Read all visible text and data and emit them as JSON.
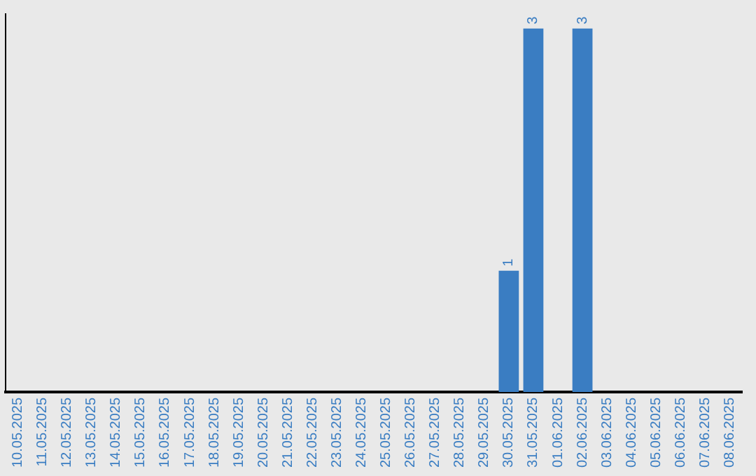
{
  "chart_data": {
    "type": "bar",
    "categories": [
      "10.05.2025",
      "11.05.2025",
      "12.05.2025",
      "13.05.2025",
      "14.05.2025",
      "15.05.2025",
      "16.05.2025",
      "17.05.2025",
      "18.05.2025",
      "19.05.2025",
      "20.05.2025",
      "21.05.2025",
      "22.05.2025",
      "23.05.2025",
      "24.05.2025",
      "25.05.2025",
      "26.05.2025",
      "27.05.2025",
      "28.05.2025",
      "29.05.2025",
      "30.05.2025",
      "31.05.2025",
      "01.06.2025",
      "02.06.2025",
      "03.06.2025",
      "04.06.2025",
      "05.06.2025",
      "06.06.2025",
      "07.06.2025",
      "08.06.2025"
    ],
    "values": [
      null,
      null,
      null,
      null,
      null,
      null,
      null,
      null,
      null,
      null,
      null,
      null,
      null,
      null,
      null,
      null,
      null,
      null,
      null,
      null,
      1,
      3,
      null,
      3,
      null,
      null,
      null,
      null,
      null,
      null
    ],
    "data_labels": true,
    "color": "#3a7dc2",
    "ylim": [
      0,
      3.12
    ],
    "tick_labels": "x",
    "grid": false,
    "legend": false
  }
}
